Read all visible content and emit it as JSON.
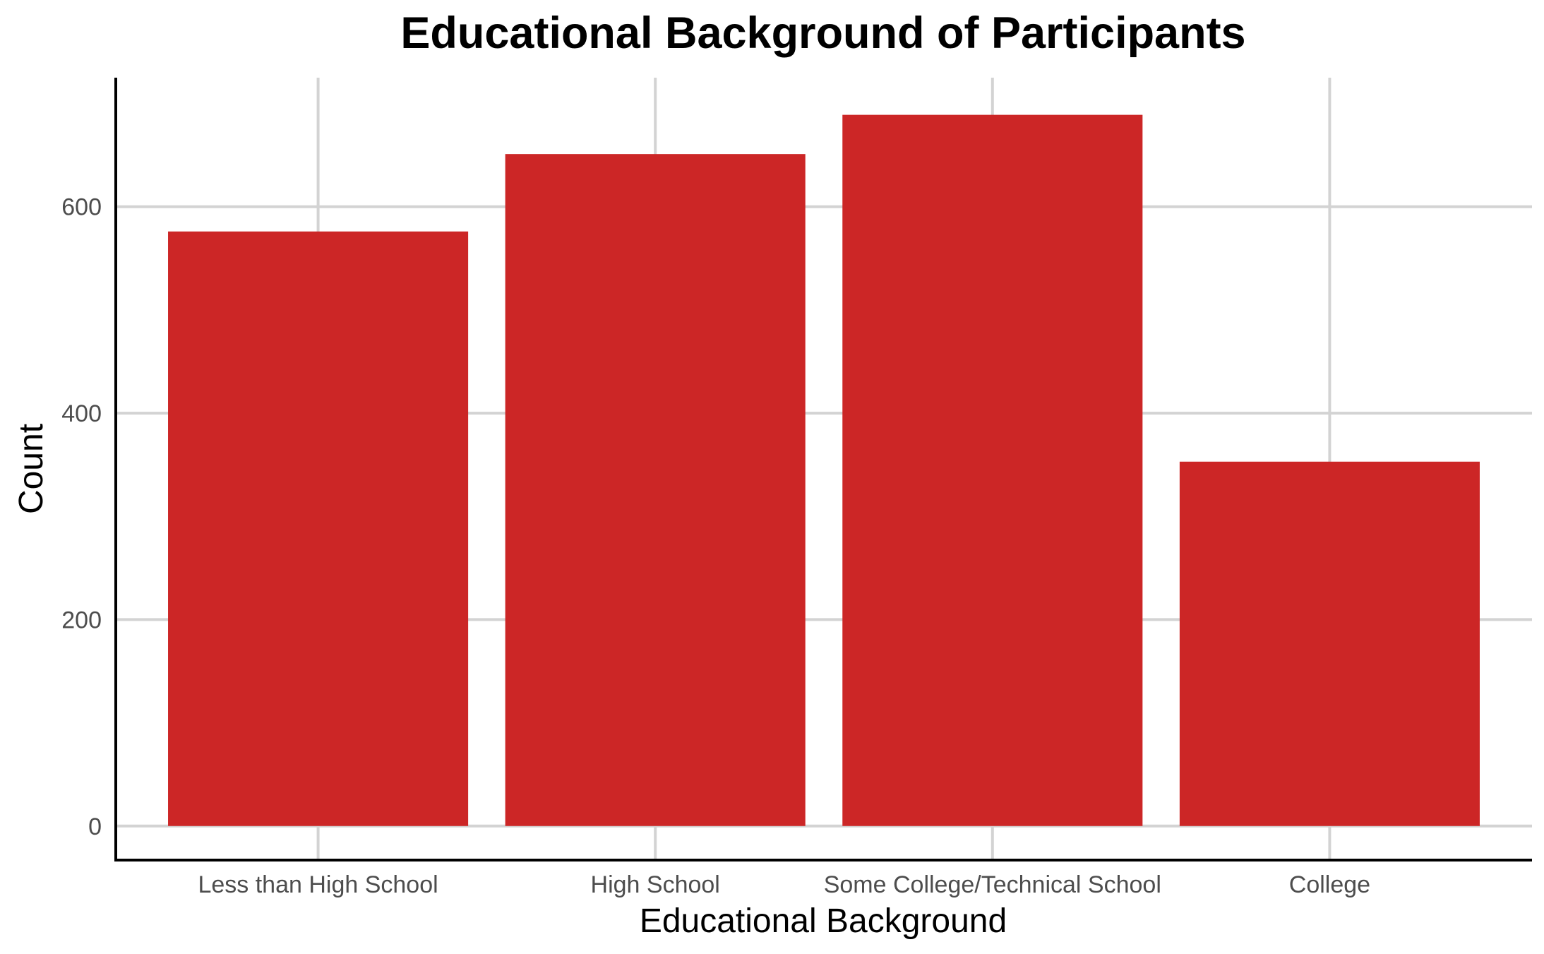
{
  "chart_data": {
    "type": "bar",
    "title": "Educational Background of Participants",
    "xlabel": "Educational Background",
    "ylabel": "Count",
    "categories": [
      "Less than High School",
      "High School",
      "Some College/Technical School",
      "College"
    ],
    "values": [
      576,
      651,
      689,
      353
    ],
    "ylim": [
      -33,
      725
    ],
    "yticks": [
      0,
      200,
      400,
      600
    ],
    "grid": true,
    "legend": "none",
    "bar_color": "#CC2626"
  }
}
